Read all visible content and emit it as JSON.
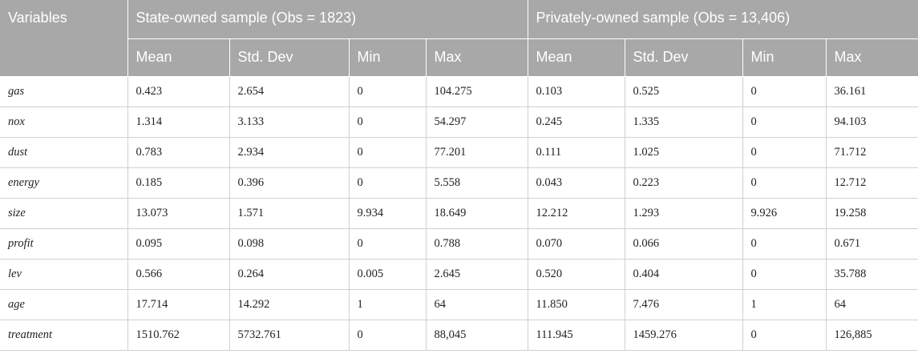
{
  "headers": {
    "variables": "Variables",
    "group_state": "State-owned sample (Obs = 1823)",
    "group_private": "Privately-owned sample (Obs = 13,406)",
    "stats": [
      "Mean",
      "Std. Dev",
      "Min",
      "Max",
      "Mean",
      "Std. Dev",
      "Min",
      "Max"
    ]
  },
  "rows": [
    [
      "gas",
      "0.423",
      "2.654",
      "0",
      "104.275",
      "0.103",
      "0.525",
      "0",
      "36.161"
    ],
    [
      "nox",
      "1.314",
      "3.133",
      "0",
      "54.297",
      "0.245",
      "1.335",
      "0",
      "94.103"
    ],
    [
      "dust",
      "0.783",
      "2.934",
      "0",
      "77.201",
      "0.111",
      "1.025",
      "0",
      "71.712"
    ],
    [
      "energy",
      "0.185",
      "0.396",
      "0",
      "5.558",
      "0.043",
      "0.223",
      "0",
      "12.712"
    ],
    [
      "size",
      "13.073",
      "1.571",
      "9.934",
      "18.649",
      "12.212",
      "1.293",
      "9.926",
      "19.258"
    ],
    [
      "profit",
      "0.095",
      "0.098",
      "0",
      "0.788",
      "0.070",
      "0.066",
      "0",
      "0.671"
    ],
    [
      "lev",
      "0.566",
      "0.264",
      "0.005",
      "2.645",
      "0.520",
      "0.404",
      "0",
      "35.788"
    ],
    [
      "age",
      "17.714",
      "14.292",
      "1",
      "64",
      "11.850",
      "7.476",
      "1",
      "64"
    ],
    [
      "treatment",
      "1510.762",
      "5732.761",
      "0",
      "88,045",
      "111.945",
      "1459.276",
      "0",
      "126,885"
    ]
  ]
}
